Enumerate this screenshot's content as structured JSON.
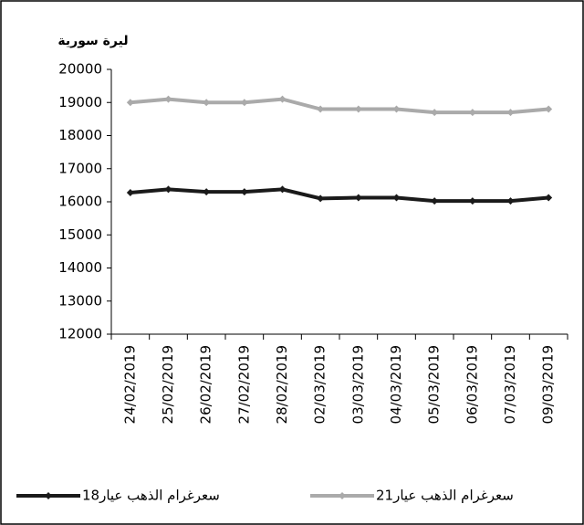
{
  "chart_data": {
    "type": "line",
    "y_label": "ليرة سورية",
    "categories": [
      "24/02/2019",
      "25/02/2019",
      "26/02/2019",
      "27/02/2019",
      "28/02/2019",
      "02/03/2019",
      "03/03/2019",
      "04/03/2019",
      "05/03/2019",
      "06/03/2019",
      "07/03/2019",
      "09/03/2019"
    ],
    "series": [
      {
        "name": "سعرغرام الذهب عيار18",
        "color": "#1a1a1a",
        "values": [
          16275,
          16375,
          16300,
          16300,
          16375,
          16100,
          16125,
          16125,
          16025,
          16025,
          16025,
          16125
        ]
      },
      {
        "name": "سعرغرام الذهب عيار21",
        "color": "#aaaaaa",
        "values": [
          19000,
          19100,
          19000,
          19000,
          19100,
          18800,
          18800,
          18800,
          18700,
          18700,
          18700,
          18800
        ]
      }
    ],
    "ylim": [
      12000,
      20000
    ],
    "yticks": [
      12000,
      13000,
      14000,
      15000,
      16000,
      17000,
      18000,
      19000,
      20000
    ],
    "grid": false
  }
}
